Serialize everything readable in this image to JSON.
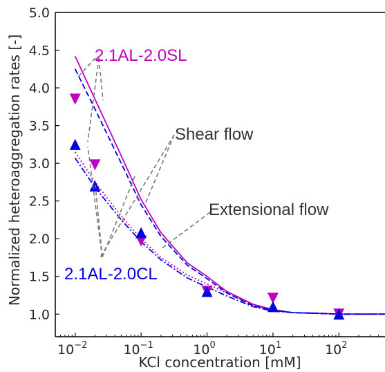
{
  "chart_data": {
    "type": "line",
    "xlabel": "KCl concentration [mM]",
    "ylabel": "Normalized heteroaggregation rates [-]",
    "xscale": "log",
    "xlim": [
      0.005,
      500
    ],
    "ylim": [
      0.7,
      5.0
    ],
    "x_ticks": [
      {
        "value": 0.01,
        "base": "10",
        "exp": "−2"
      },
      {
        "value": 0.1,
        "base": "10",
        "exp": "−1"
      },
      {
        "value": 1,
        "base": "10",
        "exp": "0"
      },
      {
        "value": 10,
        "base": "10",
        "exp": "1"
      },
      {
        "value": 100,
        "base": "10",
        "exp": "2"
      }
    ],
    "y_ticks": [
      "1.0",
      "1.5",
      "2.0",
      "2.5",
      "3.0",
      "3.5",
      "4.0",
      "4.5",
      "5.0"
    ],
    "grid": false,
    "series": [
      {
        "name": "2.1AL-2.0SL",
        "kind": "line",
        "style": "solid",
        "color": "#bf00bf",
        "x": [
          0.01,
          0.02,
          0.05,
          0.1,
          0.2,
          0.5,
          1,
          2,
          5,
          10,
          20,
          50,
          100,
          500
        ],
        "y": [
          4.42,
          3.85,
          3.1,
          2.52,
          2.08,
          1.68,
          1.5,
          1.3,
          1.13,
          1.06,
          1.02,
          1.01,
          1.0,
          1.0
        ]
      },
      {
        "name": "2.1AL-2.0SL",
        "kind": "line",
        "style": "dotted",
        "color": "#bf00bf",
        "x": [
          0.01,
          0.02,
          0.05,
          0.1,
          0.2,
          0.5,
          1,
          2,
          5,
          10,
          20,
          50,
          100,
          500
        ],
        "y": [
          3.15,
          2.75,
          2.3,
          2.0,
          1.75,
          1.52,
          1.4,
          1.28,
          1.12,
          1.05,
          1.02,
          1.01,
          1.0,
          1.0
        ]
      },
      {
        "name": "2.1AL-2.0CL",
        "kind": "line",
        "style": "dashed",
        "color": "#0000e0",
        "x": [
          0.01,
          0.02,
          0.05,
          0.1,
          0.2,
          0.5,
          1,
          2,
          5,
          10,
          20,
          50,
          100,
          500
        ],
        "y": [
          4.25,
          3.72,
          3.0,
          2.45,
          2.03,
          1.65,
          1.47,
          1.28,
          1.11,
          1.05,
          1.02,
          1.01,
          1.0,
          1.0
        ]
      },
      {
        "name": "2.1AL-2.0CL",
        "kind": "line",
        "style": "dashdot",
        "color": "#0000e0",
        "x": [
          0.01,
          0.02,
          0.05,
          0.1,
          0.2,
          0.5,
          1,
          2,
          5,
          10,
          20,
          50,
          100,
          500
        ],
        "y": [
          3.07,
          2.68,
          2.25,
          1.96,
          1.72,
          1.48,
          1.36,
          1.24,
          1.1,
          1.04,
          1.02,
          1.01,
          1.0,
          1.0
        ]
      },
      {
        "name": "2.1AL-2.0SL",
        "kind": "markers",
        "marker": "triangle-down",
        "color": "#bf00bf",
        "x": [
          0.01,
          0.02,
          0.1,
          1,
          10,
          100
        ],
        "y": [
          3.85,
          2.98,
          1.97,
          1.3,
          1.21,
          1.0
        ]
      },
      {
        "name": "2.1AL-2.0CL",
        "kind": "markers",
        "marker": "triangle-up",
        "color": "#0000e0",
        "x": [
          0.01,
          0.02,
          0.1,
          1,
          10,
          100
        ],
        "y": [
          3.25,
          2.7,
          2.08,
          1.3,
          1.1,
          1.0
        ]
      }
    ],
    "annotations": [
      {
        "text": "2.1AL-2.0SL",
        "color": "#bf00bf"
      },
      {
        "text": "Shear flow",
        "color": "#333333"
      },
      {
        "text": "Extensional flow",
        "color": "#333333"
      },
      {
        "text": "2.1AL-2.0CL",
        "color": "#0000e0"
      }
    ]
  }
}
